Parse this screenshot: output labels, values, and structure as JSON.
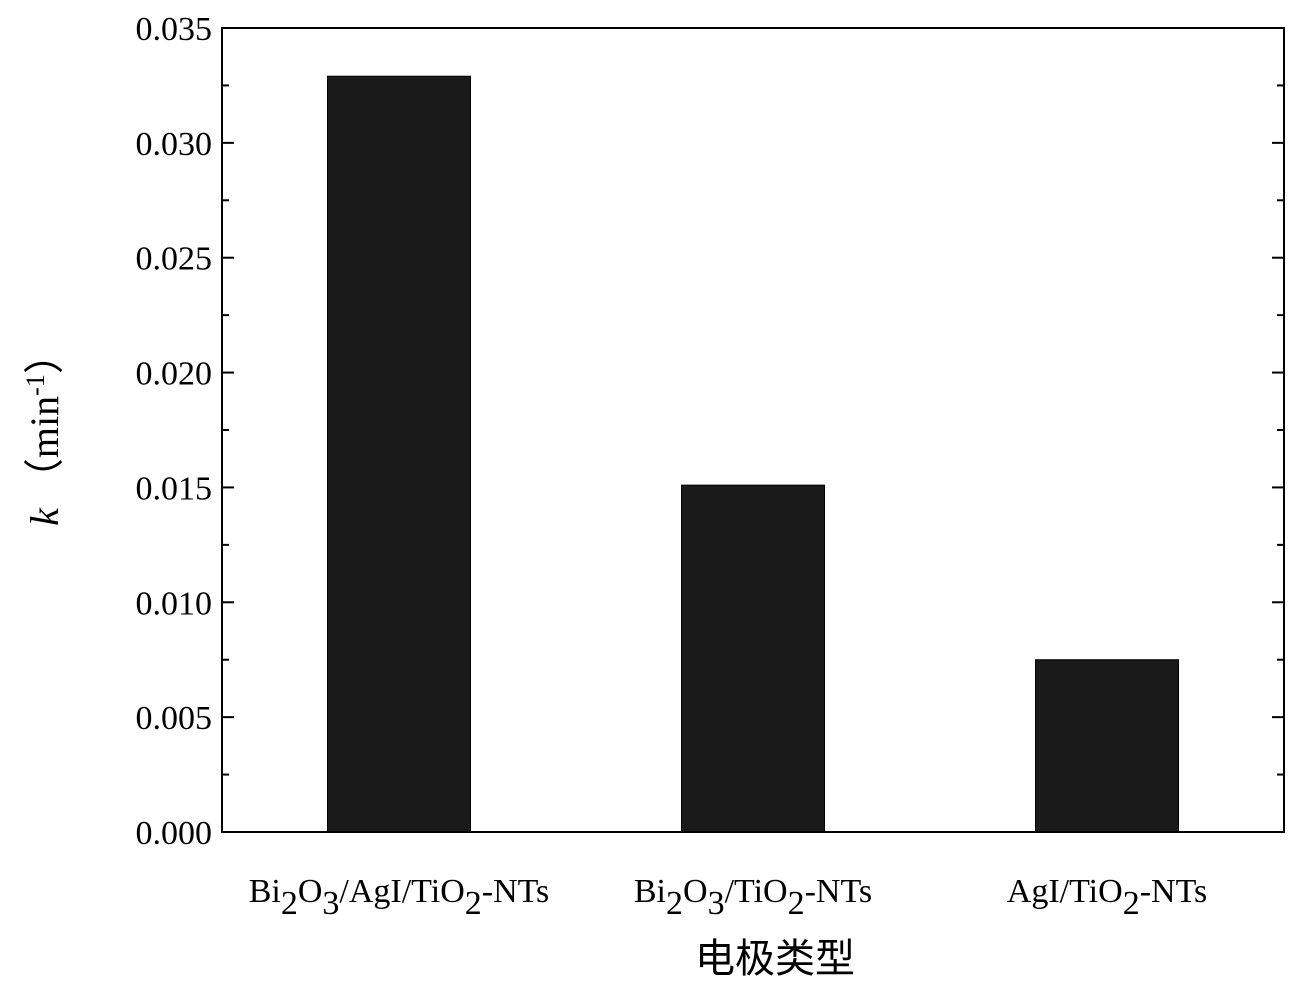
{
  "chart_data": {
    "type": "bar",
    "categories": [
      "Bi2O3/AgI/TiO2-NTs",
      "Bi2O3/TiO2-NTs",
      "AgI/TiO2-NTs"
    ],
    "category_labels": [
      [
        {
          "t": "Bi"
        },
        {
          "t": "2",
          "sub": true
        },
        {
          "t": "O"
        },
        {
          "t": "3",
          "sub": true
        },
        {
          "t": "/AgI/TiO"
        },
        {
          "t": "2",
          "sub": true
        },
        {
          "t": "-NTs"
        }
      ],
      [
        {
          "t": "Bi"
        },
        {
          "t": "2",
          "sub": true
        },
        {
          "t": "O"
        },
        {
          "t": "3",
          "sub": true
        },
        {
          "t": "/TiO"
        },
        {
          "t": "2",
          "sub": true
        },
        {
          "t": "-NTs"
        }
      ],
      [
        {
          "t": "AgI/TiO"
        },
        {
          "t": "2",
          "sub": true
        },
        {
          "t": "-NTs"
        }
      ]
    ],
    "values": [
      0.0329,
      0.0151,
      0.0075
    ],
    "ylim": [
      0,
      0.035
    ],
    "yticks": [
      "0.000",
      "0.005",
      "0.010",
      "0.015",
      "0.020",
      "0.025",
      "0.030",
      "0.035"
    ],
    "ylabel": {
      "symbol": "k",
      "unit_open": "（min",
      "unit_exp": "-1",
      "unit_close": "）"
    },
    "xlabel": "电极类型",
    "bar_color": "#1a1a1a",
    "grid": false
  }
}
